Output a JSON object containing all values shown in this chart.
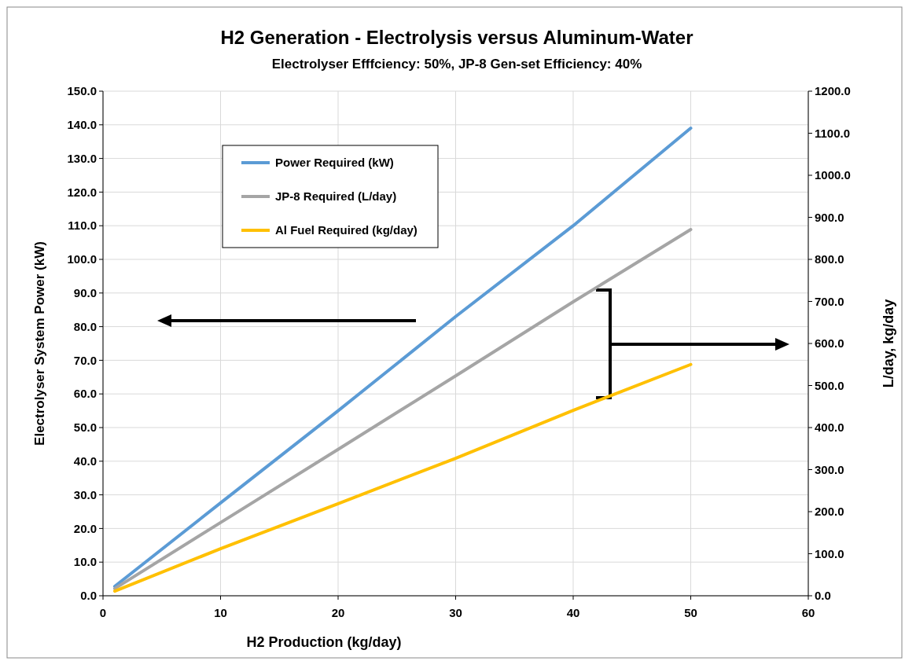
{
  "chart_data": {
    "type": "line",
    "title": "H2 Generation - Electrolysis versus Aluminum-Water",
    "subtitle": "Electrolyser Efffciency: 50%, JP-8 Gen-set Efficiency: 40%",
    "xlabel": "H2 Production (kg/day)",
    "ylabel": "Electrolyser System Power (kW)",
    "y2label": "L/day, kg/day",
    "x": [
      1,
      10,
      20,
      30,
      40,
      50
    ],
    "series": [
      {
        "name": "Power Required (kW)",
        "color": "#5b9bd5",
        "values": [
          2.8,
          27.6,
          55,
          83,
          110,
          139
        ]
      },
      {
        "name": "JP-8 Required (L/day)",
        "color": "#a5a5a5",
        "axis": "y2",
        "values": [
          17,
          174,
          348,
          523,
          699,
          871
        ]
      },
      {
        "name": "Al Fuel Required (kg/day)",
        "color": "#ffc000",
        "axis": "y2",
        "values": [
          11,
          112,
          219,
          327,
          441,
          550
        ]
      }
    ],
    "xlim": [
      0,
      60
    ],
    "xticks": [
      0,
      10,
      20,
      30,
      40,
      50,
      60
    ],
    "ylim": [
      0,
      150
    ],
    "yticks": [
      {
        "value": 0,
        "label": "0.0"
      },
      {
        "value": 10,
        "label": "10.0"
      },
      {
        "value": 20,
        "label": "20.0"
      },
      {
        "value": 30,
        "label": "30.0"
      },
      {
        "value": 40,
        "label": "40.0"
      },
      {
        "value": 50,
        "label": "50.0"
      },
      {
        "value": 60,
        "label": "60.0"
      },
      {
        "value": 70,
        "label": "70.0"
      },
      {
        "value": 80,
        "label": "80.0"
      },
      {
        "value": 90,
        "label": "90.0"
      },
      {
        "value": 100,
        "label": "100.0"
      },
      {
        "value": 110,
        "label": "110.0"
      },
      {
        "value": 120,
        "label": "120.0"
      },
      {
        "value": 130,
        "label": "130.0"
      },
      {
        "value": 140,
        "label": "140.0"
      },
      {
        "value": 150,
        "label": "150.0"
      }
    ],
    "y2lim": [
      0,
      1200
    ],
    "y2ticks": [
      {
        "value": 0,
        "label": "0.0"
      },
      {
        "value": 100,
        "label": "100.0"
      },
      {
        "value": 200,
        "label": "200.0"
      },
      {
        "value": 300,
        "label": "300.0"
      },
      {
        "value": 400,
        "label": "400.0"
      },
      {
        "value": 500,
        "label": "500.0"
      },
      {
        "value": 600,
        "label": "600.0"
      },
      {
        "value": 700,
        "label": "700.0"
      },
      {
        "value": 800,
        "label": "800.0"
      },
      {
        "value": 900,
        "label": "900.0"
      },
      {
        "value": 1000,
        "label": "1000.0"
      },
      {
        "value": 1100,
        "label": "1100.0"
      },
      {
        "value": 1200,
        "label": "1200.0"
      }
    ],
    "grid": true,
    "legend": "top left",
    "marker": "none",
    "line_style": "solid"
  }
}
